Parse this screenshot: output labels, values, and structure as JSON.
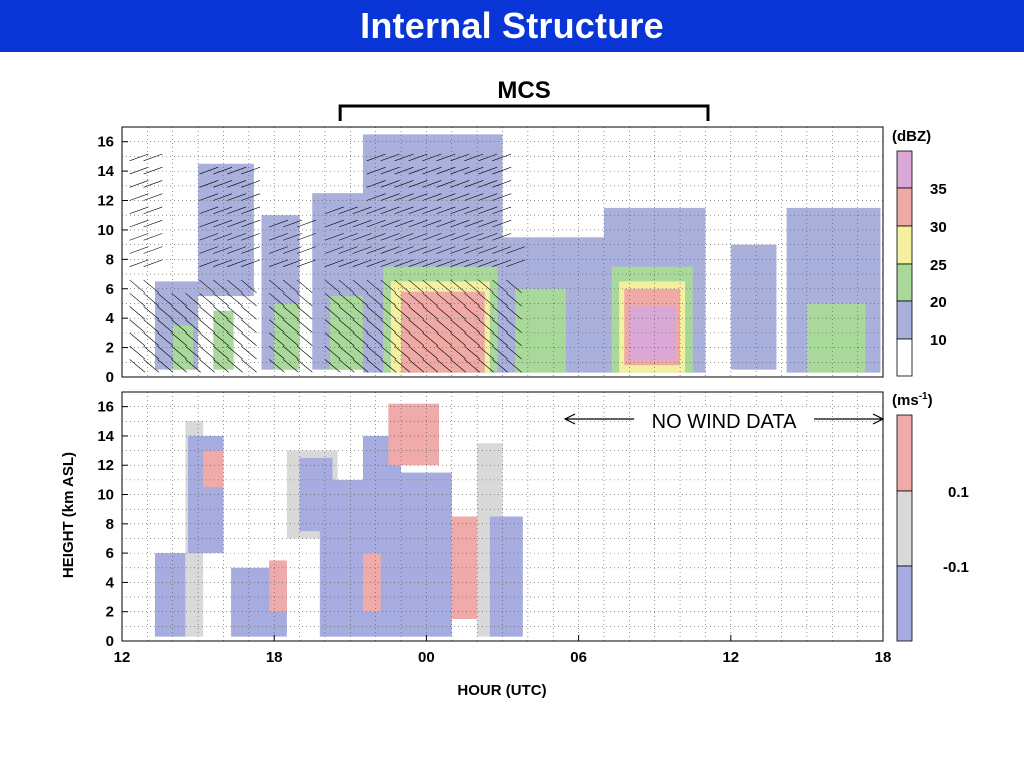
{
  "slide": {
    "title": "Internal Structure",
    "mcs_label": "MCS",
    "no_wind_label": "NO WIND DATA",
    "y_axis_label": "HEIGHT (km ASL)",
    "x_axis_label": "HOUR (UTC)"
  },
  "colors": {
    "title_bar": "#0a35d6",
    "refl_10": "#aab0dc",
    "refl_20": "#a8d89a",
    "refl_25": "#f4f0a0",
    "refl_30": "#f0aaa6",
    "refl_35": "#d9a8d6",
    "vel_neg": "#a6ace0",
    "vel_mid": "#d9d9d9",
    "vel_pos": "#f0aaaa"
  },
  "chart_data": [
    {
      "type": "heatmap",
      "panel": "reflectivity",
      "x_unit": "hour UTC (continuous, 12 to 42 = 18 next day)",
      "ylim": [
        0,
        17
      ],
      "xlim": [
        12,
        42
      ],
      "yticks": [
        "0",
        "2",
        "4",
        "6",
        "8",
        "10",
        "12",
        "14",
        "16"
      ],
      "xticks": [
        "12",
        "18",
        "00",
        "06",
        "12",
        "18"
      ],
      "grid": true,
      "colorbar": {
        "unit": "(dBZ)",
        "labels": [
          "10",
          "20",
          "25",
          "30",
          "35"
        ],
        "levels": [
          "refl_10",
          "refl_20",
          "refl_25",
          "refl_30",
          "refl_35"
        ]
      },
      "mcs_span_hours": [
        20.6,
        35.1
      ],
      "echoes": [
        {
          "t0": 13.3,
          "t1": 15.0,
          "base": 0.5,
          "top": 6.5,
          "level": "refl_10"
        },
        {
          "t0": 14.0,
          "t1": 14.8,
          "base": 0.5,
          "top": 3.5,
          "level": "refl_20"
        },
        {
          "t0": 15.0,
          "t1": 17.2,
          "base": 5.5,
          "top": 14.5,
          "level": "refl_10"
        },
        {
          "t0": 15.6,
          "t1": 16.4,
          "base": 0.5,
          "top": 4.5,
          "level": "refl_20"
        },
        {
          "t0": 17.5,
          "t1": 19.0,
          "base": 0.5,
          "top": 11.0,
          "level": "refl_10"
        },
        {
          "t0": 18.0,
          "t1": 19.0,
          "base": 0.5,
          "top": 5.0,
          "level": "refl_20"
        },
        {
          "t0": 19.5,
          "t1": 21.5,
          "base": 0.5,
          "top": 12.5,
          "level": "refl_10"
        },
        {
          "t0": 20.2,
          "t1": 21.5,
          "base": 0.5,
          "top": 5.5,
          "level": "refl_20"
        },
        {
          "t0": 21.5,
          "t1": 27.0,
          "base": 0.3,
          "top": 16.5,
          "level": "refl_10"
        },
        {
          "t0": 22.3,
          "t1": 26.8,
          "base": 0.3,
          "top": 7.5,
          "level": "refl_20"
        },
        {
          "t0": 22.6,
          "t1": 26.5,
          "base": 0.3,
          "top": 6.5,
          "level": "refl_25"
        },
        {
          "t0": 23.0,
          "t1": 26.3,
          "base": 0.3,
          "top": 5.8,
          "level": "refl_30"
        },
        {
          "t0": 27.0,
          "t1": 31.0,
          "base": 0.3,
          "top": 9.5,
          "level": "refl_10"
        },
        {
          "t0": 27.5,
          "t1": 29.5,
          "base": 0.3,
          "top": 6.0,
          "level": "refl_20"
        },
        {
          "t0": 31.0,
          "t1": 35.0,
          "base": 0.3,
          "top": 11.5,
          "level": "refl_10"
        },
        {
          "t0": 31.3,
          "t1": 34.5,
          "base": 0.3,
          "top": 7.5,
          "level": "refl_20"
        },
        {
          "t0": 31.6,
          "t1": 34.2,
          "base": 0.3,
          "top": 6.5,
          "level": "refl_25"
        },
        {
          "t0": 31.8,
          "t1": 34.0,
          "base": 0.8,
          "top": 6.0,
          "level": "refl_30"
        },
        {
          "t0": 32.0,
          "t1": 33.8,
          "base": 1.2,
          "top": 4.8,
          "level": "refl_35"
        },
        {
          "t0": 36.0,
          "t1": 37.8,
          "base": 0.5,
          "top": 9.0,
          "level": "refl_10"
        },
        {
          "t0": 38.2,
          "t1": 41.9,
          "base": 0.3,
          "top": 11.5,
          "level": "refl_10"
        },
        {
          "t0": 39.0,
          "t1": 41.3,
          "base": 0.3,
          "top": 5.0,
          "level": "refl_20"
        }
      ]
    },
    {
      "type": "heatmap",
      "panel": "vertical velocity",
      "x_unit": "hour UTC (continuous, 12 to 42 = 18 next day)",
      "ylim": [
        0,
        17
      ],
      "xlim": [
        12,
        42
      ],
      "yticks": [
        "0",
        "2",
        "4",
        "6",
        "8",
        "10",
        "12",
        "14",
        "16"
      ],
      "xticks": [
        "12",
        "18",
        "00",
        "06",
        "12",
        "18"
      ],
      "grid": true,
      "colorbar": {
        "unit": "(ms",
        "unit_sup": "-1",
        "labels": [
          "0.1",
          "-0.1"
        ],
        "levels": [
          "vel_neg",
          "vel_mid",
          "vel_pos"
        ]
      },
      "no_wind_data_span": [
        15.0,
        42.0
      ],
      "cells": [
        {
          "t0": 13.3,
          "t1": 14.5,
          "base": 0.3,
          "top": 6.0,
          "level": "vel_neg"
        },
        {
          "t0": 14.5,
          "t1": 15.2,
          "base": 0.3,
          "top": 15.0,
          "level": "vel_mid"
        },
        {
          "t0": 14.6,
          "t1": 16.0,
          "base": 6.0,
          "top": 14.0,
          "level": "vel_neg"
        },
        {
          "t0": 15.2,
          "t1": 16.0,
          "base": 10.5,
          "top": 13.0,
          "level": "vel_pos"
        },
        {
          "t0": 16.3,
          "t1": 18.5,
          "base": 0.3,
          "top": 5.0,
          "level": "vel_neg"
        },
        {
          "t0": 17.8,
          "t1": 18.5,
          "base": 2.0,
          "top": 5.5,
          "level": "vel_pos"
        },
        {
          "t0": 18.5,
          "t1": 20.5,
          "base": 7.0,
          "top": 13.0,
          "level": "vel_mid"
        },
        {
          "t0": 19.0,
          "t1": 20.3,
          "base": 7.5,
          "top": 12.5,
          "level": "vel_neg"
        },
        {
          "t0": 19.8,
          "t1": 21.5,
          "base": 0.3,
          "top": 11.0,
          "level": "vel_neg"
        },
        {
          "t0": 21.5,
          "t1": 23.0,
          "base": 0.3,
          "top": 14.0,
          "level": "vel_neg"
        },
        {
          "t0": 21.5,
          "t1": 22.2,
          "base": 2.0,
          "top": 6.0,
          "level": "vel_pos"
        },
        {
          "t0": 22.5,
          "t1": 24.5,
          "base": 12.0,
          "top": 16.2,
          "level": "vel_pos"
        },
        {
          "t0": 23.0,
          "t1": 25.0,
          "base": 0.3,
          "top": 11.5,
          "level": "vel_neg"
        },
        {
          "t0": 25.0,
          "t1": 26.8,
          "base": 1.5,
          "top": 8.5,
          "level": "vel_pos"
        },
        {
          "t0": 26.0,
          "t1": 27.0,
          "base": 0.3,
          "top": 13.5,
          "level": "vel_mid"
        },
        {
          "t0": 26.5,
          "t1": 27.8,
          "base": 0.3,
          "top": 8.5,
          "level": "vel_neg"
        }
      ]
    }
  ]
}
